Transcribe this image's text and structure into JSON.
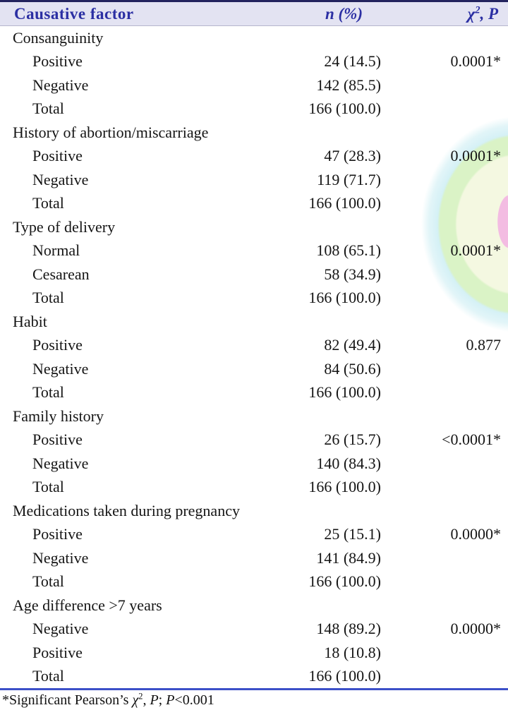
{
  "page": {
    "header_bg": "#e3e3f2",
    "header_text_color": "#2b2fa3",
    "top_border_color": "#23235e",
    "bottom_rule_color": "#3c50c8"
  },
  "watermark": {
    "colors": {
      "cyan": "#cdeef5",
      "green": "#daf3c6",
      "pale_yellow": "#f4f8e1",
      "pink": "#f3bce2"
    }
  },
  "table": {
    "headers": {
      "factor": "Causative factor",
      "n": "n (%)",
      "chi": "χ",
      "chi_sup": "2",
      "p": ", P"
    },
    "groups": [
      {
        "factor": "Consanguinity",
        "rows": [
          {
            "label": "Positive",
            "n": "24 (14.5)",
            "p": "0.0001*"
          },
          {
            "label": "Negative",
            "n": "142 (85.5)",
            "p": ""
          },
          {
            "label": "Total",
            "n": "166 (100.0)",
            "p": ""
          }
        ]
      },
      {
        "factor": "History of abortion/miscarriage",
        "rows": [
          {
            "label": "Positive",
            "n": "47 (28.3)",
            "p": "0.0001*"
          },
          {
            "label": "Negative",
            "n": "119 (71.7)",
            "p": ""
          },
          {
            "label": "Total",
            "n": "166 (100.0)",
            "p": ""
          }
        ]
      },
      {
        "factor": "Type of delivery",
        "rows": [
          {
            "label": "Normal",
            "n": "108 (65.1)",
            "p": "0.0001*"
          },
          {
            "label": "Cesarean",
            "n": "58 (34.9)",
            "p": ""
          },
          {
            "label": "Total",
            "n": "166 (100.0)",
            "p": ""
          }
        ]
      },
      {
        "factor": "Habit",
        "rows": [
          {
            "label": "Positive",
            "n": "82 (49.4)",
            "p": "0.877"
          },
          {
            "label": "Negative",
            "n": "84 (50.6)",
            "p": ""
          },
          {
            "label": "Total",
            "n": "166 (100.0)",
            "p": ""
          }
        ]
      },
      {
        "factor": "Family history",
        "rows": [
          {
            "label": "Positive",
            "n": "26 (15.7)",
            "p": "<0.0001*"
          },
          {
            "label": "Negative",
            "n": "140 (84.3)",
            "p": ""
          },
          {
            "label": "Total",
            "n": "166 (100.0)",
            "p": ""
          }
        ]
      },
      {
        "factor": "Medications taken during pregnancy",
        "rows": [
          {
            "label": "Positive",
            "n": "25 (15.1)",
            "p": "0.0000*"
          },
          {
            "label": "Negative",
            "n": "141 (84.9)",
            "p": ""
          },
          {
            "label": "Total",
            "n": "166 (100.0)",
            "p": ""
          }
        ]
      },
      {
        "factor": "Age difference >7 years",
        "rows": [
          {
            "label": "Negative",
            "n": "148 (89.2)",
            "p": "0.0000*"
          },
          {
            "label": "Positive",
            "n": "18 (10.8)",
            "p": ""
          },
          {
            "label": "Total",
            "n": "166 (100.0)",
            "p": ""
          }
        ]
      }
    ]
  },
  "footnote": {
    "text1": "*Significant Pearson’s ",
    "chi": "χ",
    "sup": "2",
    "text2": ", ",
    "p1": "P",
    "text3": "; ",
    "p2": "P",
    "text4": "<0.001"
  }
}
